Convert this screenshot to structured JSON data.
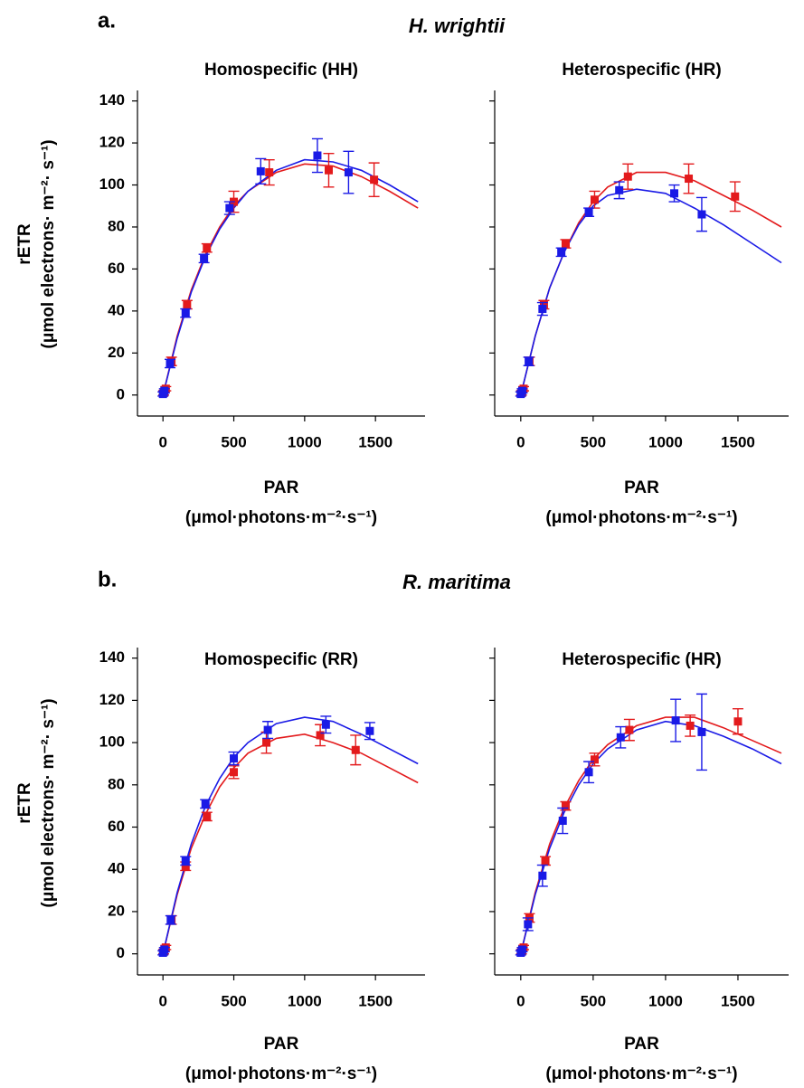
{
  "sections": [
    {
      "label": "a.",
      "title": "H. wrightii"
    },
    {
      "label": "b.",
      "title": "R. maritima"
    }
  ],
  "chart_data": [
    {
      "type": "scatter",
      "title": "Homospecific (HH)",
      "xlabel": [
        "PAR",
        "(μmol·photons·m⁻²·s⁻¹)"
      ],
      "ylabel": [
        "rETR",
        "(μmol electrons· m⁻²· s⁻¹)"
      ],
      "xlim": [
        -180,
        1850
      ],
      "xticks": [
        0,
        500,
        1000,
        1500
      ],
      "ylim": [
        -10,
        145
      ],
      "yticks": [
        0,
        20,
        40,
        60,
        80,
        100,
        120,
        140
      ],
      "ytick_labels": true,
      "series": [
        {
          "color": "#e31a1c",
          "x": [
            5,
            20,
            60,
            170,
            310,
            500,
            750,
            1170,
            1490
          ],
          "values": [
            1,
            3,
            16,
            43,
            70,
            92,
            106,
            107,
            102.5
          ],
          "errors": [
            1,
            1,
            2,
            2,
            2,
            5,
            6,
            8,
            8
          ],
          "fit_x": [
            0,
            100,
            200,
            300,
            400,
            500,
            600,
            800,
            1000,
            1200,
            1400,
            1600,
            1800
          ],
          "fit_values": [
            0,
            28,
            50,
            67,
            80,
            90,
            97,
            106,
            110,
            109,
            104,
            97,
            89
          ]
        },
        {
          "color": "#1a1ae6",
          "x": [
            0,
            10,
            50,
            160,
            290,
            470,
            690,
            1090,
            1310
          ],
          "values": [
            0.5,
            2,
            15,
            39,
            65,
            89,
            106.5,
            114,
            106
          ],
          "errors": [
            1,
            1,
            2,
            2,
            2,
            3,
            6,
            8,
            10
          ],
          "fit_x": [
            0,
            100,
            200,
            300,
            400,
            500,
            600,
            800,
            1000,
            1200,
            1400,
            1600,
            1800
          ],
          "fit_values": [
            0,
            27,
            49,
            66,
            79,
            89,
            97,
            107,
            112,
            111,
            107,
            100,
            92
          ]
        }
      ]
    },
    {
      "type": "scatter",
      "title": "Heterospecific (HR)",
      "xlabel": [
        "PAR",
        "(μmol·photons·m⁻²·s⁻¹)"
      ],
      "xlim": [
        -180,
        1850
      ],
      "xticks": [
        0,
        500,
        1000,
        1500
      ],
      "ylim": [
        -10,
        145
      ],
      "yticks": [
        0,
        20,
        40,
        60,
        80,
        100,
        120,
        140
      ],
      "ytick_labels": false,
      "series": [
        {
          "color": "#e31a1c",
          "x": [
            5,
            20,
            60,
            160,
            310,
            510,
            740,
            1160,
            1480
          ],
          "values": [
            1,
            3,
            16,
            43,
            72,
            93,
            104,
            103,
            94.5
          ],
          "errors": [
            1,
            1,
            2,
            2,
            2,
            4,
            6,
            7,
            7
          ],
          "fit_x": [
            0,
            100,
            200,
            300,
            400,
            500,
            600,
            800,
            1000,
            1200,
            1400,
            1600,
            1800
          ],
          "fit_values": [
            0,
            28,
            51,
            68,
            82,
            92,
            99,
            106,
            106,
            102,
            95,
            88,
            80
          ]
        },
        {
          "color": "#1a1ae6",
          "x": [
            0,
            10,
            55,
            150,
            280,
            470,
            680,
            1060,
            1250
          ],
          "values": [
            0.5,
            2,
            16,
            41,
            68,
            87,
            97.5,
            96,
            86
          ],
          "errors": [
            1,
            1,
            2,
            3,
            2,
            2,
            4,
            4,
            8
          ],
          "fit_x": [
            0,
            100,
            200,
            300,
            400,
            500,
            600,
            800,
            1000,
            1200,
            1400,
            1600,
            1800
          ],
          "fit_values": [
            0,
            28,
            51,
            68,
            81,
            90,
            95,
            98,
            96,
            89,
            81,
            72,
            63
          ]
        }
      ]
    },
    {
      "type": "scatter",
      "title": "Homospecific (RR)",
      "xlabel": [
        "PAR",
        "(μmol·photons·m⁻²·s⁻¹)"
      ],
      "ylabel": [
        "rETR",
        "(μmol electrons· m⁻²· s⁻¹)"
      ],
      "xlim": [
        -180,
        1850
      ],
      "xticks": [
        0,
        500,
        1000,
        1500
      ],
      "ylim": [
        -10,
        145
      ],
      "yticks": [
        0,
        20,
        40,
        60,
        80,
        100,
        120,
        140
      ],
      "ytick_labels": true,
      "series": [
        {
          "color": "#e31a1c",
          "x": [
            5,
            20,
            60,
            160,
            310,
            500,
            730,
            1110,
            1360
          ],
          "values": [
            1,
            3,
            16,
            41.5,
            65,
            86,
            100,
            103.5,
            96.5
          ],
          "errors": [
            1,
            1,
            2,
            2,
            2,
            3,
            5,
            5,
            7
          ],
          "fit_x": [
            0,
            100,
            200,
            300,
            400,
            500,
            600,
            800,
            1000,
            1200,
            1400,
            1600,
            1800
          ],
          "fit_values": [
            0,
            28,
            50,
            66,
            79,
            88,
            95,
            102,
            104,
            100,
            95,
            88,
            81
          ]
        },
        {
          "color": "#1a1ae6",
          "x": [
            0,
            10,
            55,
            160,
            300,
            500,
            740,
            1150,
            1460
          ],
          "values": [
            0.5,
            2,
            16,
            44,
            71,
            92.5,
            106,
            108.5,
            105.5
          ],
          "errors": [
            1,
            1,
            2,
            2,
            2,
            3,
            4,
            4,
            4
          ],
          "fit_x": [
            0,
            100,
            200,
            300,
            400,
            500,
            600,
            800,
            1000,
            1200,
            1400,
            1600,
            1800
          ],
          "fit_values": [
            0,
            29,
            52,
            70,
            83,
            93,
            100,
            109,
            112,
            110,
            104,
            97,
            90
          ]
        }
      ]
    },
    {
      "type": "scatter",
      "title": "Heterospecific (HR)",
      "xlabel": [
        "PAR",
        "(μmol·photons·m⁻²·s⁻¹)"
      ],
      "xlim": [
        -180,
        1850
      ],
      "xticks": [
        0,
        500,
        1000,
        1500
      ],
      "ylim": [
        -10,
        145
      ],
      "yticks": [
        0,
        20,
        40,
        60,
        80,
        100,
        120,
        140
      ],
      "ytick_labels": false,
      "series": [
        {
          "color": "#e31a1c",
          "x": [
            5,
            20,
            60,
            170,
            310,
            510,
            750,
            1170,
            1500
          ],
          "values": [
            1,
            3,
            17,
            44,
            70,
            92,
            106,
            108,
            110
          ],
          "errors": [
            1,
            1,
            2,
            2,
            2,
            3,
            5,
            5,
            6
          ],
          "fit_x": [
            0,
            100,
            200,
            300,
            400,
            500,
            600,
            800,
            1000,
            1200,
            1400,
            1600,
            1800
          ],
          "fit_values": [
            0,
            29,
            52,
            69,
            82,
            92,
            99,
            108,
            112,
            112,
            107,
            101,
            95
          ]
        },
        {
          "color": "#1a1ae6",
          "x": [
            0,
            10,
            50,
            150,
            290,
            470,
            690,
            1070,
            1250
          ],
          "values": [
            0.5,
            2,
            14,
            37,
            63,
            86,
            102.5,
            110.5,
            105
          ],
          "errors": [
            1,
            1,
            3,
            5,
            6,
            5,
            5,
            10,
            18
          ],
          "fit_x": [
            0,
            100,
            200,
            300,
            400,
            500,
            600,
            800,
            1000,
            1200,
            1400,
            1600,
            1800
          ],
          "fit_values": [
            0,
            28,
            50,
            67,
            80,
            90,
            97,
            106,
            110,
            108,
            103,
            97,
            90
          ]
        }
      ]
    }
  ]
}
